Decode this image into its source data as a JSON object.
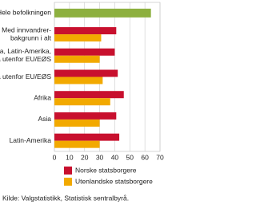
{
  "chart_data": {
    "type": "hbar",
    "categories": [
      [
        "Hele befolkningen"
      ],
      [
        "Med innvandrer-",
        "bakgrunn i alt"
      ],
      [
        "Afrika, Asia, Latin-Amerika,",
        "Europa utenfor EU/EØS"
      ],
      [
        "Europa utenfor EU/EØS"
      ],
      [
        "Afrika"
      ],
      [
        "Asia"
      ],
      [
        "Latin-Amerika"
      ]
    ],
    "series": [
      {
        "color": "#8db03f",
        "values": [
          64,
          null,
          null,
          null,
          null,
          null,
          null
        ]
      },
      {
        "name": "Norske statsborgere",
        "color": "#c8102e",
        "values": [
          null,
          41,
          40,
          42,
          46,
          41,
          43
        ]
      },
      {
        "name": "Utenlandske statsborgere",
        "color": "#f2a900",
        "values": [
          null,
          31,
          30,
          32,
          37,
          30,
          30
        ]
      }
    ],
    "xlim": [
      0,
      70
    ],
    "xticks": [
      0,
      10,
      20,
      30,
      40,
      50,
      60,
      70
    ],
    "grid": true,
    "source": "Kilde: Valgstatistikk, Statistisk sentralbyrå."
  }
}
